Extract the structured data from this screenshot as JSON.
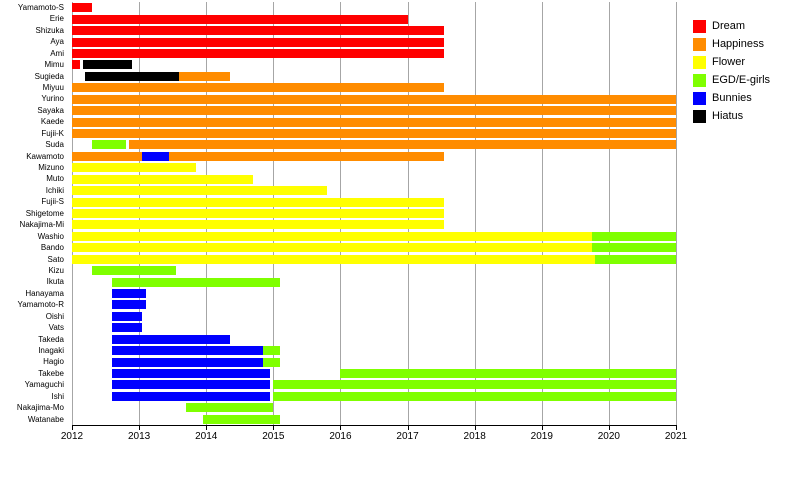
{
  "chart_data": {
    "type": "gantt",
    "title": "",
    "x_min": 2012,
    "x_max": 2021,
    "x_ticks": [
      2012,
      2013,
      2014,
      2015,
      2016,
      2017,
      2018,
      2019,
      2020,
      2021
    ],
    "grid": true,
    "grid_color": "#a6a6a6",
    "axis_color": "#000000",
    "legend_position": "top-right",
    "colors": {
      "dream": "#ff0000",
      "happiness": "#ff8c00",
      "flower": "#ffff00",
      "egd": "#7fff00",
      "bunnies": "#0000ff",
      "hiatus": "#000000"
    },
    "legend": [
      {
        "key": "dream",
        "label": "Dream"
      },
      {
        "key": "happiness",
        "label": "Happiness"
      },
      {
        "key": "flower",
        "label": "Flower"
      },
      {
        "key": "egd",
        "label": "EGD/E-girls"
      },
      {
        "key": "bunnies",
        "label": "Bunnies"
      },
      {
        "key": "hiatus",
        "label": "Hiatus"
      }
    ],
    "members": [
      {
        "name": "Yamamoto-S",
        "segments": [
          {
            "group": "dream",
            "start": 2012.0,
            "end": 2012.3
          }
        ]
      },
      {
        "name": "Erie",
        "segments": [
          {
            "group": "dream",
            "start": 2012.0,
            "end": 2017.0
          }
        ]
      },
      {
        "name": "Shizuka",
        "segments": [
          {
            "group": "dream",
            "start": 2012.0,
            "end": 2017.55
          }
        ]
      },
      {
        "name": "Aya",
        "segments": [
          {
            "group": "dream",
            "start": 2012.0,
            "end": 2017.55
          }
        ]
      },
      {
        "name": "Ami",
        "segments": [
          {
            "group": "dream",
            "start": 2012.0,
            "end": 2017.55
          }
        ]
      },
      {
        "name": "Mimu",
        "segments": [
          {
            "group": "dream",
            "start": 2012.0,
            "end": 2012.12
          },
          {
            "group": "hiatus",
            "start": 2012.17,
            "end": 2012.9
          }
        ]
      },
      {
        "name": "Sugieda",
        "segments": [
          {
            "group": "hiatus",
            "start": 2012.2,
            "end": 2013.6
          },
          {
            "group": "happiness",
            "start": 2013.6,
            "end": 2014.35
          }
        ]
      },
      {
        "name": "Miyuu",
        "segments": [
          {
            "group": "happiness",
            "start": 2012.0,
            "end": 2017.55
          }
        ]
      },
      {
        "name": "Yurino",
        "segments": [
          {
            "group": "happiness",
            "start": 2012.0,
            "end": 2021.0
          }
        ]
      },
      {
        "name": "Sayaka",
        "segments": [
          {
            "group": "happiness",
            "start": 2012.0,
            "end": 2021.0
          }
        ]
      },
      {
        "name": "Kaede",
        "segments": [
          {
            "group": "happiness",
            "start": 2012.0,
            "end": 2021.0
          }
        ]
      },
      {
        "name": "Fujii-K",
        "segments": [
          {
            "group": "happiness",
            "start": 2012.0,
            "end": 2021.0
          }
        ]
      },
      {
        "name": "Suda",
        "segments": [
          {
            "group": "egd",
            "start": 2012.3,
            "end": 2012.8
          },
          {
            "group": "happiness",
            "start": 2012.85,
            "end": 2021.0
          }
        ]
      },
      {
        "name": "Kawamoto",
        "segments": [
          {
            "group": "happiness",
            "start": 2012.0,
            "end": 2013.05
          },
          {
            "group": "bunnies",
            "start": 2013.05,
            "end": 2013.45
          },
          {
            "group": "happiness",
            "start": 2013.45,
            "end": 2017.55
          }
        ]
      },
      {
        "name": "Mizuno",
        "segments": [
          {
            "group": "flower",
            "start": 2012.0,
            "end": 2013.85
          }
        ]
      },
      {
        "name": "Muto",
        "segments": [
          {
            "group": "flower",
            "start": 2012.0,
            "end": 2014.7
          }
        ]
      },
      {
        "name": "Ichiki",
        "segments": [
          {
            "group": "flower",
            "start": 2012.0,
            "end": 2015.8
          }
        ]
      },
      {
        "name": "Fujii-S",
        "segments": [
          {
            "group": "flower",
            "start": 2012.0,
            "end": 2017.55
          }
        ]
      },
      {
        "name": "Shigetome",
        "segments": [
          {
            "group": "flower",
            "start": 2012.0,
            "end": 2017.55
          }
        ]
      },
      {
        "name": "Nakajima-Mi",
        "segments": [
          {
            "group": "flower",
            "start": 2012.0,
            "end": 2017.55
          }
        ]
      },
      {
        "name": "Washio",
        "segments": [
          {
            "group": "flower",
            "start": 2012.0,
            "end": 2019.75
          },
          {
            "group": "egd",
            "start": 2019.75,
            "end": 2021.0
          }
        ]
      },
      {
        "name": "Bando",
        "segments": [
          {
            "group": "flower",
            "start": 2012.0,
            "end": 2019.75
          },
          {
            "group": "egd",
            "start": 2019.75,
            "end": 2021.0
          }
        ]
      },
      {
        "name": "Sato",
        "segments": [
          {
            "group": "flower",
            "start": 2012.0,
            "end": 2019.8
          },
          {
            "group": "egd",
            "start": 2019.8,
            "end": 2021.0
          }
        ]
      },
      {
        "name": "Kizu",
        "segments": [
          {
            "group": "egd",
            "start": 2012.3,
            "end": 2013.55
          }
        ]
      },
      {
        "name": "Ikuta",
        "segments": [
          {
            "group": "egd",
            "start": 2012.6,
            "end": 2015.1
          }
        ]
      },
      {
        "name": "Hanayama",
        "segments": [
          {
            "group": "bunnies",
            "start": 2012.6,
            "end": 2013.1
          }
        ]
      },
      {
        "name": "Yamamoto-R",
        "segments": [
          {
            "group": "bunnies",
            "start": 2012.6,
            "end": 2013.1
          }
        ]
      },
      {
        "name": "Oishi",
        "segments": [
          {
            "group": "bunnies",
            "start": 2012.6,
            "end": 2013.05
          }
        ]
      },
      {
        "name": "Vats",
        "segments": [
          {
            "group": "bunnies",
            "start": 2012.6,
            "end": 2013.05
          }
        ]
      },
      {
        "name": "Takeda",
        "segments": [
          {
            "group": "bunnies",
            "start": 2012.6,
            "end": 2014.35
          }
        ]
      },
      {
        "name": "Inagaki",
        "segments": [
          {
            "group": "bunnies",
            "start": 2012.6,
            "end": 2014.85
          },
          {
            "group": "egd",
            "start": 2014.85,
            "end": 2015.1
          }
        ]
      },
      {
        "name": "Hagio",
        "segments": [
          {
            "group": "bunnies",
            "start": 2012.6,
            "end": 2014.85
          },
          {
            "group": "egd",
            "start": 2014.85,
            "end": 2015.1
          }
        ]
      },
      {
        "name": "Takebe",
        "segments": [
          {
            "group": "bunnies",
            "start": 2012.6,
            "end": 2014.95
          },
          {
            "group": "egd",
            "start": 2016.0,
            "end": 2021.0
          }
        ]
      },
      {
        "name": "Yamaguchi",
        "segments": [
          {
            "group": "bunnies",
            "start": 2012.6,
            "end": 2014.95
          },
          {
            "group": "egd",
            "start": 2015.0,
            "end": 2021.0
          }
        ]
      },
      {
        "name": "Ishi",
        "segments": [
          {
            "group": "bunnies",
            "start": 2012.6,
            "end": 2014.95
          },
          {
            "group": "egd",
            "start": 2015.0,
            "end": 2021.0
          }
        ]
      },
      {
        "name": "Nakajima-Mo",
        "segments": [
          {
            "group": "egd",
            "start": 2013.7,
            "end": 2015.0
          }
        ]
      },
      {
        "name": "Watanabe",
        "segments": [
          {
            "group": "egd",
            "start": 2013.95,
            "end": 2015.1
          }
        ]
      }
    ]
  }
}
